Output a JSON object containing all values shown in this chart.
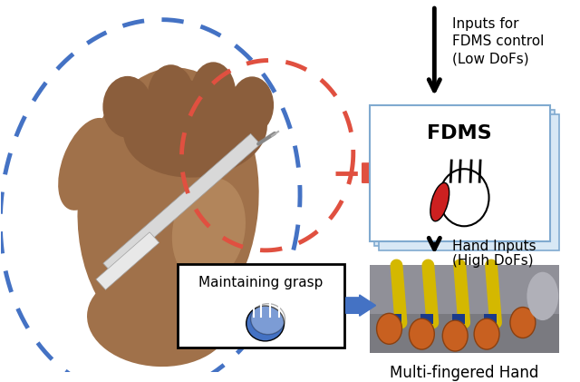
{
  "bg_color": "#ffffff",
  "text_inputs_for": "Inputs for",
  "text_fdms_control": "FDMS control",
  "text_low_dofs": "(Low DoFs)",
  "text_fdms_box": "FDMS",
  "text_hand_inputs": "Hand Inputs",
  "text_high_dofs": "(High DoFs)",
  "text_multi_fingered": "Multi-fingered Hand",
  "text_maintaining": "Maintaining grasp",
  "blue_color": "#4472c4",
  "red_color": "#e05040",
  "skin_dark": "#8B5E3C",
  "skin_mid": "#A0714A",
  "skin_light": "#C49A6C",
  "fig_w": 6.4,
  "fig_h": 4.21
}
